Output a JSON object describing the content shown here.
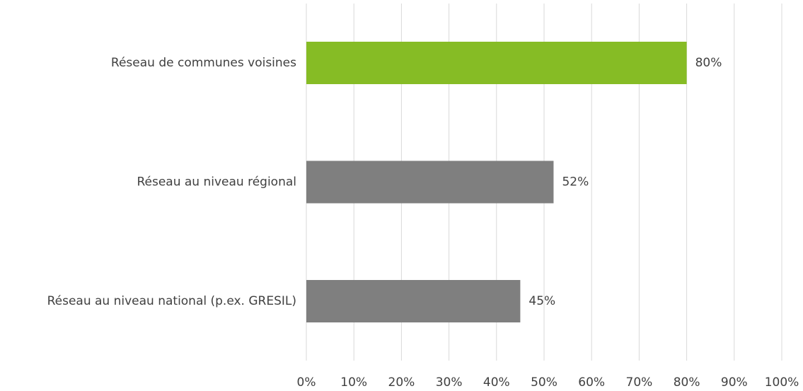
{
  "chart_data": {
    "type": "bar",
    "orientation": "horizontal",
    "categories": [
      "Réseau de communes voisines",
      "Réseau au niveau régional",
      "Réseau au niveau national (p.ex. GRESIL)"
    ],
    "values": [
      80,
      52,
      45
    ],
    "value_labels": [
      "80%",
      "52%",
      "45%"
    ],
    "colors": [
      "#86bc25",
      "#7f7f7f",
      "#7f7f7f"
    ],
    "xlim": [
      0,
      100
    ],
    "xticks": [
      {
        "value": 0,
        "label": "0%"
      },
      {
        "value": 10,
        "label": "10%"
      },
      {
        "value": 20,
        "label": "20%"
      },
      {
        "value": 30,
        "label": "30%"
      },
      {
        "value": 40,
        "label": "40%"
      },
      {
        "value": 50,
        "label": "50%"
      },
      {
        "value": 60,
        "label": "60%"
      },
      {
        "value": 70,
        "label": "70%"
      },
      {
        "value": 80,
        "label": "80%"
      },
      {
        "value": 90,
        "label": "90%"
      },
      {
        "value": 100,
        "label": "100%"
      }
    ],
    "grid": true
  }
}
